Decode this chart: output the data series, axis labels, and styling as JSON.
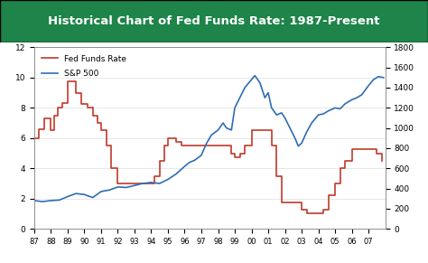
{
  "title": "Historical Chart of Fed Funds Rate: 1987-Present",
  "title_bg_color": "#2e8b57",
  "title_text_color": "white",
  "bg_color": "white",
  "plot_bg_color": "white",
  "fed_funds_color": "#c0392b",
  "sp500_color": "#2e6db4",
  "left_ylim": [
    0,
    12
  ],
  "right_ylim": [
    0,
    1800
  ],
  "left_yticks": [
    0,
    2,
    4,
    6,
    8,
    10,
    12
  ],
  "right_yticks": [
    0,
    200,
    400,
    600,
    800,
    1000,
    1200,
    1400,
    1600,
    1800
  ],
  "xtick_labels": [
    "87",
    "88",
    "89",
    "90",
    "91",
    "92",
    "93",
    "94",
    "95",
    "96",
    "97",
    "98",
    "99",
    "00",
    "01",
    "02",
    "03",
    "04",
    "05",
    "06",
    "07"
  ],
  "fed_funds_years": [
    1987.0,
    1987.3,
    1987.6,
    1988.0,
    1988.2,
    1988.4,
    1988.7,
    1989.0,
    1989.2,
    1989.5,
    1989.8,
    1990.0,
    1990.2,
    1990.5,
    1990.8,
    1991.0,
    1991.3,
    1991.6,
    1992.0,
    1992.3,
    1992.6,
    1993.0,
    1993.5,
    1994.0,
    1994.2,
    1994.5,
    1994.8,
    1995.0,
    1995.5,
    1995.8,
    1996.0,
    1996.5,
    1997.0,
    1997.5,
    1998.0,
    1998.5,
    1998.8,
    1999.0,
    1999.3,
    1999.6,
    2000.0,
    2000.2,
    2000.5,
    2000.8,
    2001.0,
    2001.2,
    2001.5,
    2001.8,
    2002.0,
    2002.3,
    2002.6,
    2003.0,
    2003.3,
    2003.6,
    2004.0,
    2004.3,
    2004.6,
    2005.0,
    2005.3,
    2005.6,
    2006.0,
    2006.3,
    2006.6,
    2007.0,
    2007.5,
    2007.8
  ],
  "fed_funds_values": [
    6.0,
    6.6,
    7.3,
    6.5,
    7.5,
    8.0,
    8.3,
    9.75,
    9.75,
    9.0,
    8.25,
    8.25,
    8.0,
    7.5,
    7.0,
    6.5,
    5.5,
    4.0,
    3.0,
    3.0,
    3.0,
    3.0,
    3.0,
    3.0,
    3.5,
    4.5,
    5.5,
    6.0,
    5.75,
    5.5,
    5.5,
    5.5,
    5.5,
    5.5,
    5.5,
    5.5,
    5.0,
    4.75,
    5.0,
    5.5,
    6.5,
    6.5,
    6.5,
    6.5,
    6.5,
    5.5,
    3.5,
    1.75,
    1.75,
    1.75,
    1.75,
    1.25,
    1.0,
    1.0,
    1.0,
    1.25,
    2.25,
    3.0,
    4.0,
    4.5,
    5.25,
    5.25,
    5.25,
    5.25,
    5.0,
    4.5
  ],
  "sp500_years": [
    1987.0,
    1987.5,
    1988.0,
    1988.5,
    1989.0,
    1989.5,
    1990.0,
    1990.5,
    1991.0,
    1991.5,
    1992.0,
    1992.5,
    1993.0,
    1993.5,
    1994.0,
    1994.5,
    1995.0,
    1995.5,
    1996.0,
    1996.3,
    1996.6,
    1997.0,
    1997.3,
    1997.6,
    1998.0,
    1998.3,
    1998.5,
    1998.8,
    1999.0,
    1999.3,
    1999.6,
    2000.0,
    2000.2,
    2000.5,
    2000.8,
    2001.0,
    2001.2,
    2001.5,
    2001.8,
    2002.0,
    2002.3,
    2002.6,
    2002.8,
    2003.0,
    2003.3,
    2003.6,
    2004.0,
    2004.3,
    2004.6,
    2005.0,
    2005.3,
    2005.6,
    2006.0,
    2006.3,
    2006.6,
    2007.0,
    2007.3,
    2007.6,
    2007.9
  ],
  "sp500_values": [
    280,
    270,
    280,
    285,
    320,
    350,
    340,
    310,
    370,
    385,
    415,
    410,
    430,
    450,
    460,
    450,
    490,
    545,
    620,
    660,
    680,
    730,
    845,
    930,
    980,
    1050,
    1000,
    980,
    1200,
    1300,
    1400,
    1480,
    1520,
    1450,
    1300,
    1350,
    1200,
    1130,
    1150,
    1100,
    1000,
    900,
    820,
    850,
    960,
    1050,
    1130,
    1140,
    1170,
    1200,
    1190,
    1240,
    1280,
    1300,
    1330,
    1420,
    1480,
    1510,
    1500
  ],
  "legend_fed_label": "Fed Funds Rate",
  "legend_sp500_label": "S&P 500"
}
